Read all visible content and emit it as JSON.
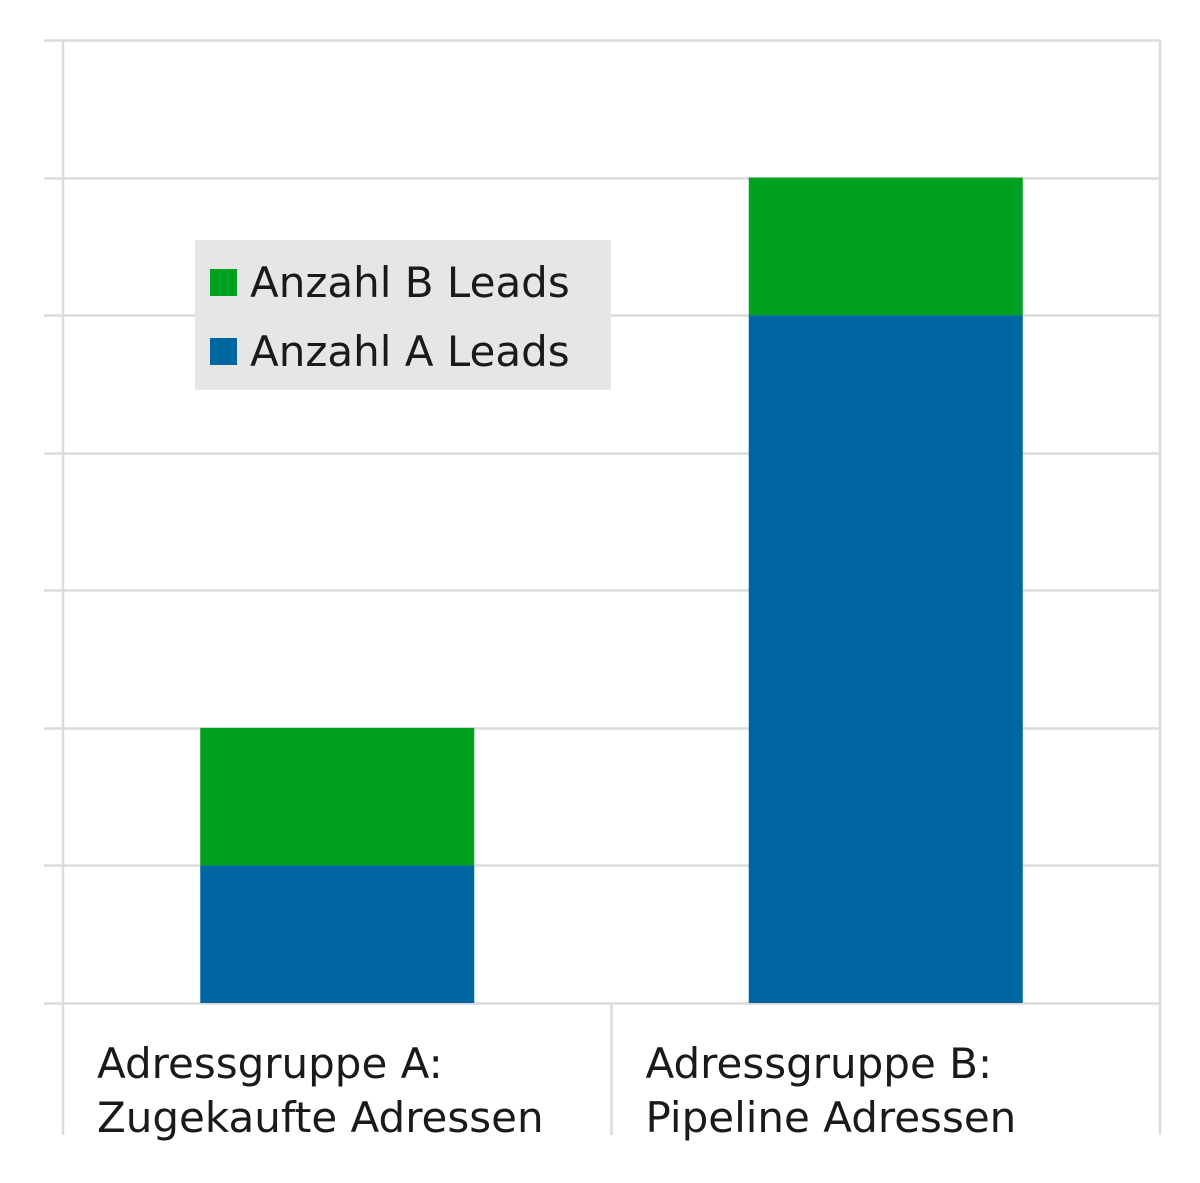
{
  "chart_data": {
    "type": "bar",
    "stacked": true,
    "categories": [
      "Adressgruppe A:\nZugekaufte Adressen",
      "Adressgruppe B:\nPipeline Adressen"
    ],
    "series": [
      {
        "name": "Anzahl A Leads",
        "color": "#0066a1",
        "values": [
          1,
          5
        ]
      },
      {
        "name": "Anzahl B Leads",
        "color": "#00a020",
        "values": [
          1,
          1
        ]
      }
    ],
    "ylim": [
      0,
      7
    ],
    "yticks": [
      0,
      1,
      2,
      3,
      4,
      5,
      6,
      7
    ],
    "grid": true,
    "legend": {
      "position": "top-left",
      "order": "reversed"
    },
    "title": "",
    "xlabel": "",
    "ylabel": ""
  }
}
